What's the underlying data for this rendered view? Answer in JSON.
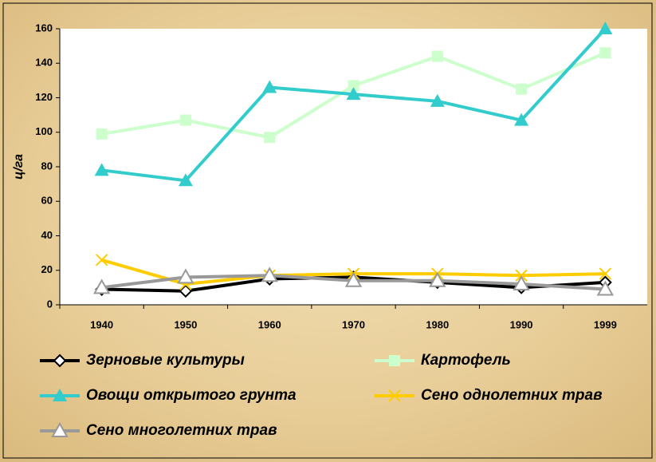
{
  "chart_data": {
    "type": "line",
    "y_label": "ц/га",
    "categories": [
      "1940",
      "1950",
      "1960",
      "1970",
      "1980",
      "1990",
      "1999"
    ],
    "ylim": [
      0,
      160
    ],
    "yticks": [
      0,
      20,
      40,
      60,
      80,
      100,
      120,
      140,
      160
    ],
    "series": [
      {
        "name": "Зерновые культуры",
        "color": "#000000",
        "marker": "diamond",
        "values": [
          9,
          8,
          15,
          16,
          13,
          10,
          13
        ]
      },
      {
        "name": "Картофель",
        "color": "#ccffcc",
        "marker": "square",
        "values": [
          99,
          107,
          97,
          127,
          144,
          125,
          146
        ]
      },
      {
        "name": "Овощи открытого грунта",
        "color": "#33cccc",
        "marker": "triangle",
        "values": [
          78,
          72,
          126,
          122,
          118,
          107,
          160
        ]
      },
      {
        "name": "Сено однолетних трав",
        "color": "#ffcc00",
        "marker": "x",
        "values": [
          26,
          12,
          17,
          18,
          18,
          17,
          18
        ]
      },
      {
        "name": "Сено многолетних трав",
        "color": "#999999",
        "marker": "open-triangle",
        "values": [
          10,
          16,
          17,
          14,
          14,
          12,
          9
        ]
      }
    ]
  }
}
